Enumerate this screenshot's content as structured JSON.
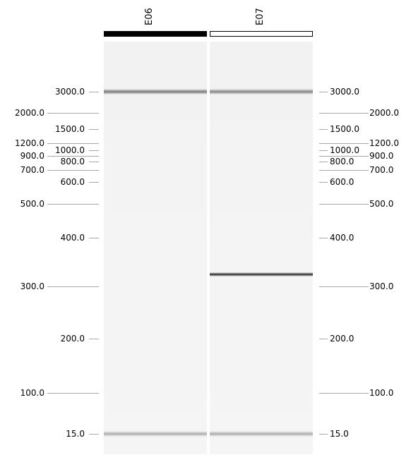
{
  "lanes": [
    {
      "label": "E06",
      "header_style": "filled",
      "bands": [
        {
          "size": 3000,
          "intensity": 0.6
        },
        {
          "size": 15,
          "intensity": 0.35
        }
      ]
    },
    {
      "label": "E07",
      "header_style": "outlined",
      "bands": [
        {
          "size": 3000,
          "intensity": 0.55
        },
        {
          "size": 325,
          "intensity": 1.0
        },
        {
          "size": 15,
          "intensity": 0.35
        }
      ]
    }
  ],
  "ladder": [
    {
      "text": "3000.0",
      "size": 3000,
      "short": true
    },
    {
      "text": "2000.0",
      "size": 2000,
      "short": false
    },
    {
      "text": "1500.0",
      "size": 1500,
      "short": true
    },
    {
      "text": "1200.0",
      "size": 1200,
      "short": false
    },
    {
      "text": "1000.0",
      "size": 1000,
      "short": true
    },
    {
      "text": "900.0",
      "size": 900,
      "short": false
    },
    {
      "text": "800.0",
      "size": 800,
      "short": true
    },
    {
      "text": "700.0",
      "size": 700,
      "short": false
    },
    {
      "text": "600.0",
      "size": 600,
      "short": true
    },
    {
      "text": "500.0",
      "size": 500,
      "short": false
    },
    {
      "text": "400.0",
      "size": 400,
      "short": true
    },
    {
      "text": "300.0",
      "size": 300,
      "short": false
    },
    {
      "text": "200.0",
      "size": 200,
      "short": true
    },
    {
      "text": "100.0",
      "size": 100,
      "short": false
    },
    {
      "text": "15.0",
      "size": 15,
      "short": true
    }
  ],
  "colors": {
    "band": "#3a3a3a",
    "lane_bg": "#f3f3f3",
    "tick": "#a8a8a8",
    "header_fill": "#000000"
  }
}
